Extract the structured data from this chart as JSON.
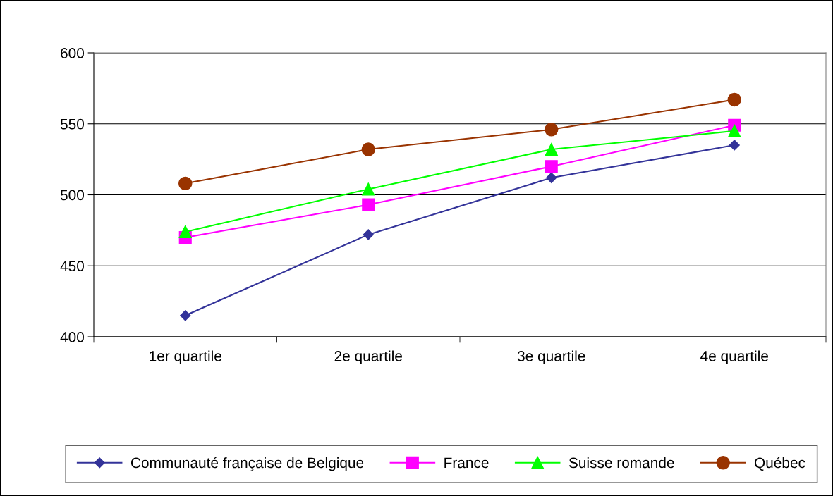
{
  "chart_data": {
    "type": "line",
    "categories": [
      "1er quartile",
      "2e quartile",
      "3e quartile",
      "4e quartile"
    ],
    "series": [
      {
        "name": "Communauté française de Belgique",
        "color": "#333399",
        "marker": "diamond",
        "values": [
          415,
          472,
          512,
          535
        ]
      },
      {
        "name": "France",
        "color": "#ff00ff",
        "marker": "square",
        "values": [
          470,
          493,
          520,
          549
        ]
      },
      {
        "name": "Suisse romande",
        "color": "#00ff00",
        "marker": "triangle",
        "values": [
          474,
          504,
          532,
          545
        ]
      },
      {
        "name": "Québec",
        "color": "#993300",
        "marker": "circle",
        "values": [
          508,
          532,
          546,
          567
        ]
      }
    ],
    "ylim": [
      400,
      600
    ],
    "yticks": [
      400,
      450,
      500,
      550,
      600
    ],
    "grid": "y",
    "legend": "bottom"
  }
}
